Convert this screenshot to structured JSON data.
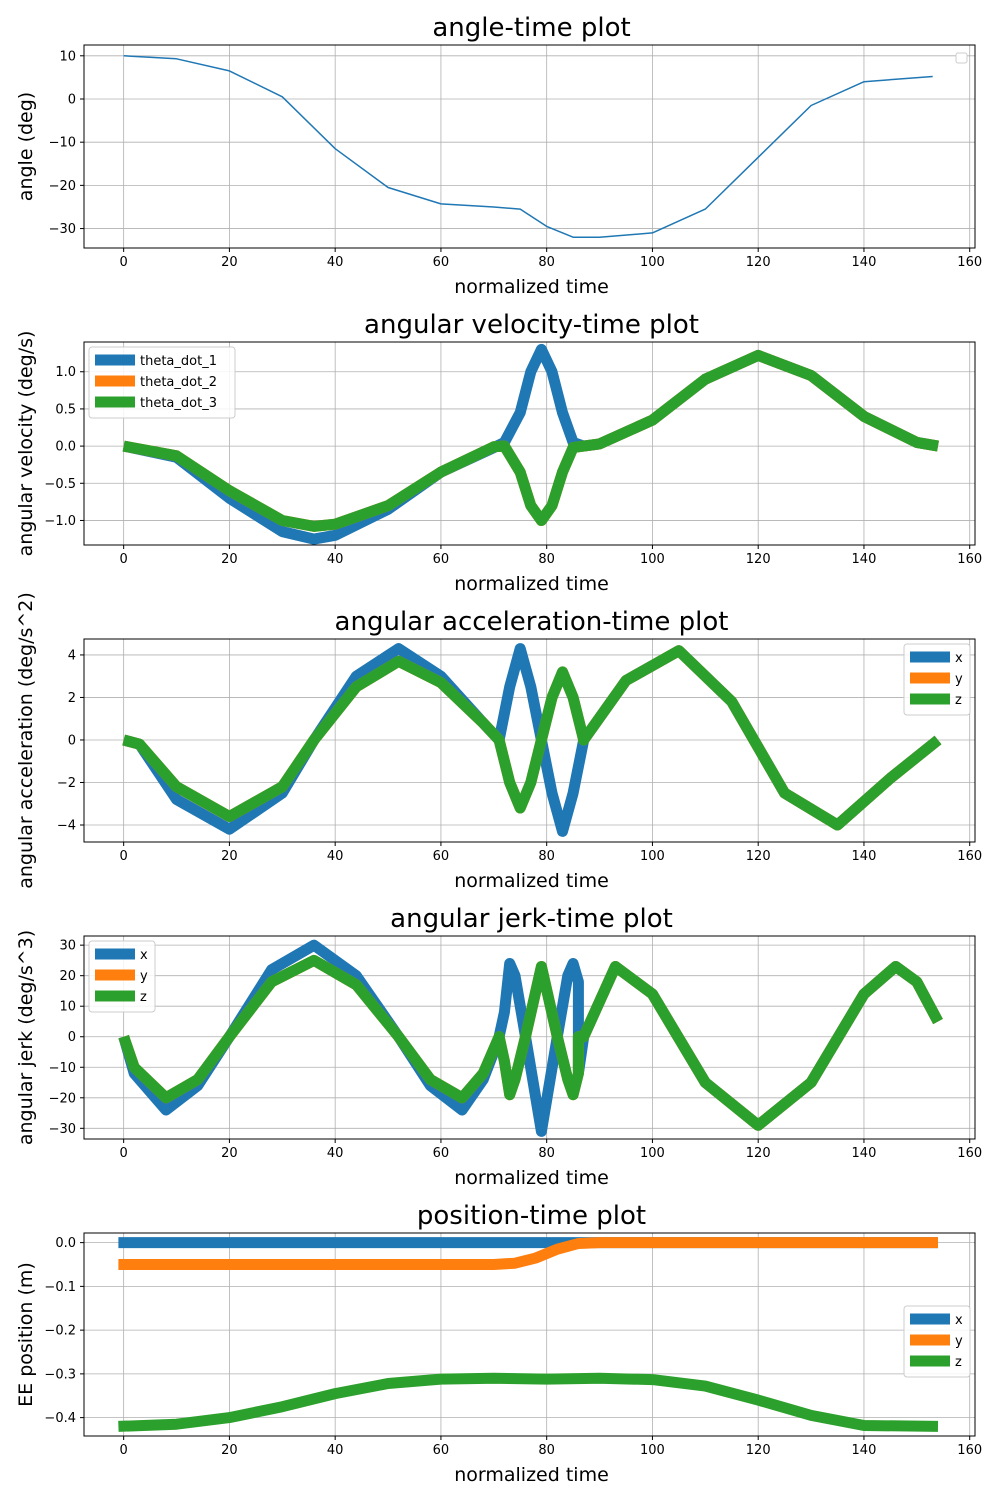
{
  "colors": {
    "blue": "#1f77b4",
    "orange": "#ff7f0e",
    "green": "#2ca02c",
    "grid": "#b0b0b0"
  },
  "chart_data": [
    {
      "type": "line",
      "title": "angle-time plot",
      "xlabel": "normalized time",
      "ylabel": "angle (deg)",
      "xlim": [
        -7.5,
        161
      ],
      "ylim": [
        -34.5,
        12.5
      ],
      "xticks": [
        0,
        20,
        40,
        60,
        80,
        100,
        120,
        140,
        160
      ],
      "yticks": [
        10,
        0,
        -10,
        -20,
        -30
      ],
      "ytick_labels": [
        "10",
        "0",
        "−10",
        "−20",
        "−30"
      ],
      "grid": true,
      "legend": {
        "placement": "top-right",
        "entries": []
      },
      "series": [
        {
          "color": "#1f77b4",
          "linewidth": 1.5,
          "x": [
            0,
            10,
            20,
            30,
            40,
            50,
            60,
            70,
            75,
            80,
            85,
            90,
            100,
            110,
            120,
            130,
            140,
            153
          ],
          "y": [
            10,
            9.3,
            6.5,
            0.5,
            -11.5,
            -20.5,
            -24.3,
            -25,
            -25.5,
            -29.5,
            -32,
            -32,
            -31,
            -25.5,
            -13.5,
            -1.5,
            4,
            5.2
          ]
        }
      ]
    },
    {
      "type": "line",
      "title": "angular velocity-time plot",
      "xlabel": "normalized time",
      "ylabel": "angular velocity (deg/s)",
      "xlim": [
        -7.5,
        161
      ],
      "ylim": [
        -1.33,
        1.4
      ],
      "xticks": [
        0,
        20,
        40,
        60,
        80,
        100,
        120,
        140,
        160
      ],
      "yticks": [
        1.0,
        0.5,
        0.0,
        -0.5,
        -1.0
      ],
      "ytick_labels": [
        "1.0",
        "0.5",
        "0.0",
        "−0.5",
        "−1.0"
      ],
      "grid": true,
      "legend": {
        "placement": "top-left",
        "entries": [
          "theta_dot_1",
          "theta_dot_2",
          "theta_dot_3"
        ]
      },
      "series": [
        {
          "name": "theta_dot_1",
          "color": "#1f77b4",
          "linewidth": 11,
          "x": [
            0,
            10,
            20,
            30,
            36,
            40,
            50,
            60,
            70,
            72,
            75,
            77,
            79,
            81,
            83,
            85,
            87,
            90,
            100,
            110,
            120,
            130,
            140,
            150,
            154
          ],
          "y": [
            0,
            -0.15,
            -0.7,
            -1.15,
            -1.25,
            -1.2,
            -0.85,
            -0.35,
            -0.02,
            0.05,
            0.45,
            1.0,
            1.3,
            1.0,
            0.45,
            0.05,
            0,
            0.03,
            0.35,
            0.9,
            1.22,
            0.95,
            0.4,
            0.05,
            0
          ]
        },
        {
          "name": "theta_dot_2",
          "color": "#ff7f0e",
          "linewidth": 11,
          "x": [
            0,
            10,
            20,
            30,
            36,
            40,
            50,
            60,
            70,
            72,
            75,
            77,
            79,
            81,
            83,
            85,
            87,
            90,
            100,
            110,
            120,
            130,
            140,
            150,
            154
          ],
          "y": [
            0,
            -0.13,
            -0.6,
            -1.0,
            -1.08,
            -1.05,
            -0.8,
            -0.35,
            -0.01,
            0.0,
            -0.35,
            -0.8,
            -1.0,
            -0.8,
            -0.35,
            -0.02,
            0,
            0.03,
            0.35,
            0.9,
            1.22,
            0.95,
            0.4,
            0.05,
            0
          ]
        },
        {
          "name": "theta_dot_3",
          "color": "#2ca02c",
          "linewidth": 11,
          "x": [
            0,
            10,
            20,
            30,
            36,
            40,
            50,
            60,
            70,
            72,
            75,
            77,
            79,
            81,
            83,
            85,
            87,
            90,
            100,
            110,
            120,
            130,
            140,
            150,
            154
          ],
          "y": [
            0,
            -0.13,
            -0.6,
            -1.0,
            -1.08,
            -1.05,
            -0.8,
            -0.35,
            -0.01,
            0.0,
            -0.35,
            -0.8,
            -1.0,
            -0.8,
            -0.35,
            -0.02,
            0,
            0.03,
            0.35,
            0.9,
            1.22,
            0.95,
            0.4,
            0.05,
            0
          ]
        }
      ]
    },
    {
      "type": "line",
      "title": "angular acceleration-time plot",
      "xlabel": "normalized time",
      "ylabel": "angular acceleration (deg/s^2)",
      "xlim": [
        -7.5,
        161
      ],
      "ylim": [
        -4.8,
        4.75
      ],
      "xticks": [
        0,
        20,
        40,
        60,
        80,
        100,
        120,
        140,
        160
      ],
      "yticks": [
        4,
        2,
        0,
        -2,
        -4
      ],
      "ytick_labels": [
        "4",
        "2",
        "0",
        "−2",
        "−4"
      ],
      "grid": true,
      "legend": {
        "placement": "top-right",
        "entries": [
          "x",
          "y",
          "z"
        ]
      },
      "series": [
        {
          "name": "x",
          "color": "#1f77b4",
          "linewidth": 11,
          "x": [
            0,
            3,
            10,
            20,
            30,
            36,
            44,
            52,
            60,
            68,
            71,
            73,
            75,
            77,
            79,
            81,
            83,
            85,
            87,
            95,
            105,
            115,
            125,
            135,
            145,
            154
          ],
          "y": [
            0,
            -0.2,
            -2.8,
            -4.2,
            -2.5,
            0,
            3,
            4.3,
            3,
            0.8,
            0,
            2.5,
            4.3,
            2.5,
            0,
            -2.5,
            -4.3,
            -2.5,
            0,
            2.8,
            4.2,
            1.8,
            -2.5,
            -4.0,
            -1.8,
            0
          ]
        },
        {
          "name": "y",
          "color": "#ff7f0e",
          "linewidth": 11,
          "x": [
            0,
            3,
            10,
            20,
            30,
            36,
            44,
            52,
            60,
            68,
            71,
            73,
            75,
            77,
            79,
            81,
            83,
            85,
            87,
            95,
            105,
            115,
            125,
            135,
            145,
            154
          ],
          "y": [
            0,
            -0.2,
            -2.2,
            -3.6,
            -2.2,
            0,
            2.5,
            3.7,
            2.7,
            0.8,
            0,
            -2,
            -3.2,
            -2,
            0,
            2,
            3.2,
            2,
            0,
            2.8,
            4.2,
            1.8,
            -2.5,
            -4.0,
            -1.8,
            0
          ]
        },
        {
          "name": "z",
          "color": "#2ca02c",
          "linewidth": 11,
          "x": [
            0,
            3,
            10,
            20,
            30,
            36,
            44,
            52,
            60,
            68,
            71,
            73,
            75,
            77,
            79,
            81,
            83,
            85,
            87,
            95,
            105,
            115,
            125,
            135,
            145,
            154
          ],
          "y": [
            0,
            -0.2,
            -2.2,
            -3.6,
            -2.2,
            0,
            2.5,
            3.7,
            2.7,
            0.8,
            0,
            -2,
            -3.2,
            -2,
            0,
            2,
            3.2,
            2,
            0,
            2.8,
            4.2,
            1.8,
            -2.5,
            -4.0,
            -1.8,
            0
          ]
        }
      ]
    },
    {
      "type": "line",
      "title": "angular jerk-time plot",
      "xlabel": "normalized time",
      "ylabel": "angular jerk (deg/s^3)",
      "xlim": [
        -7.5,
        161
      ],
      "ylim": [
        -33.5,
        33
      ],
      "xticks": [
        0,
        20,
        40,
        60,
        80,
        100,
        120,
        140,
        160
      ],
      "yticks": [
        30,
        20,
        10,
        0,
        -10,
        -20,
        -30
      ],
      "ytick_labels": [
        "30",
        "20",
        "10",
        "0",
        "−10",
        "−20",
        "−30"
      ],
      "grid": true,
      "legend": {
        "placement": "top-left",
        "entries": [
          "x",
          "y",
          "z"
        ]
      },
      "series": [
        {
          "name": "x",
          "color": "#1f77b4",
          "linewidth": 11,
          "x": [
            0,
            2,
            8,
            14,
            20,
            28,
            36,
            44,
            52,
            58,
            64,
            68,
            70,
            71,
            72,
            73,
            74,
            76,
            79,
            82,
            84,
            85,
            86,
            86,
            87,
            93,
            100,
            110,
            120,
            130,
            140,
            146,
            150,
            154
          ],
          "y": [
            0,
            -12,
            -24,
            -16,
            0,
            22,
            30,
            20,
            0,
            -16,
            -24,
            -14,
            -5,
            0,
            8,
            24,
            20,
            0,
            -31,
            0,
            20,
            24,
            18,
            -12,
            0,
            23,
            14,
            -15,
            -29,
            -15,
            14,
            23,
            18,
            5
          ]
        },
        {
          "name": "y",
          "color": "#ff7f0e",
          "linewidth": 11,
          "x": [
            0,
            2,
            8,
            14,
            20,
            28,
            36,
            44,
            52,
            58,
            64,
            68,
            70,
            71,
            72,
            73,
            74,
            76,
            79,
            82,
            84,
            85,
            86,
            86,
            87,
            93,
            100,
            110,
            120,
            130,
            140,
            146,
            150,
            154
          ],
          "y": [
            0,
            -10,
            -20,
            -14,
            0,
            18,
            25,
            17,
            0,
            -14,
            -20,
            -12,
            -4,
            0,
            -8,
            -19,
            -14,
            0,
            23,
            0,
            -14,
            -19,
            -12,
            0,
            0,
            23,
            14,
            -15,
            -29,
            -15,
            14,
            23,
            18,
            5
          ]
        },
        {
          "name": "z",
          "color": "#2ca02c",
          "linewidth": 11,
          "x": [
            0,
            2,
            8,
            14,
            20,
            28,
            36,
            44,
            52,
            58,
            64,
            68,
            70,
            71,
            72,
            73,
            74,
            76,
            79,
            82,
            84,
            85,
            86,
            86,
            87,
            93,
            100,
            110,
            120,
            130,
            140,
            146,
            150,
            154
          ],
          "y": [
            0,
            -10,
            -20,
            -14,
            0,
            18,
            25,
            17,
            0,
            -14,
            -20,
            -12,
            -4,
            0,
            -8,
            -19,
            -14,
            0,
            23,
            0,
            -14,
            -19,
            -12,
            0,
            0,
            23,
            14,
            -15,
            -29,
            -15,
            14,
            23,
            18,
            5
          ]
        }
      ]
    },
    {
      "type": "line",
      "title": "position-time plot",
      "xlabel": "normalized time",
      "ylabel": "EE position (m)",
      "xlim": [
        -7.5,
        161
      ],
      "ylim": [
        -0.442,
        0.022
      ],
      "xticks": [
        0,
        20,
        40,
        60,
        80,
        100,
        120,
        140,
        160
      ],
      "yticks": [
        0.0,
        -0.1,
        -0.2,
        -0.3,
        -0.4
      ],
      "ytick_labels": [
        "0.0",
        "−0.1",
        "−0.2",
        "−0.3",
        "−0.4"
      ],
      "grid": true,
      "legend": {
        "placement": "center-right",
        "entries": [
          "x",
          "y",
          "z"
        ]
      },
      "series": [
        {
          "name": "x",
          "color": "#1f77b4",
          "linewidth": 11,
          "x": [
            -1,
            154
          ],
          "y": [
            0.0,
            0.0
          ]
        },
        {
          "name": "y",
          "color": "#ff7f0e",
          "linewidth": 11,
          "x": [
            -1,
            70,
            74,
            78,
            82,
            86,
            90,
            154
          ],
          "y": [
            -0.05,
            -0.05,
            -0.047,
            -0.035,
            -0.015,
            -0.002,
            0.0,
            0.0
          ]
        },
        {
          "name": "z",
          "color": "#2ca02c",
          "linewidth": 11,
          "x": [
            -1,
            10,
            20,
            30,
            40,
            50,
            60,
            70,
            80,
            90,
            100,
            110,
            120,
            130,
            140,
            154
          ],
          "y": [
            -0.42,
            -0.415,
            -0.4,
            -0.375,
            -0.345,
            -0.322,
            -0.312,
            -0.31,
            -0.312,
            -0.31,
            -0.313,
            -0.328,
            -0.36,
            -0.395,
            -0.418,
            -0.42
          ]
        }
      ]
    }
  ]
}
